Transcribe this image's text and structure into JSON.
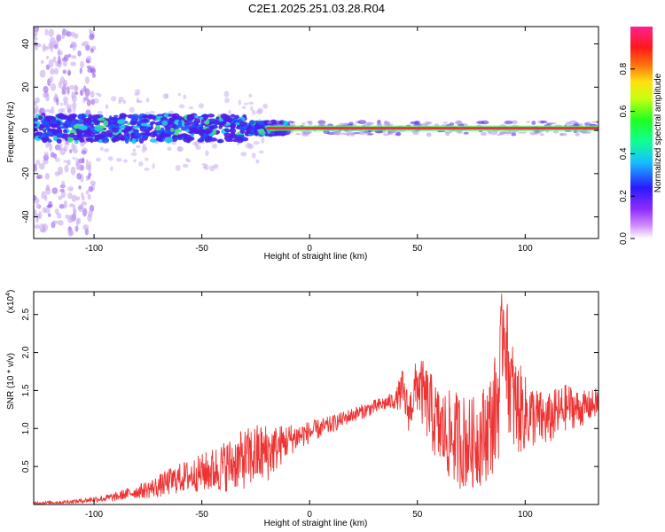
{
  "title": "C2E1.2025.251.03.28.R04",
  "colors": {
    "snr_line": "#ee3333",
    "axis": "#000000",
    "carrier": "#e8323c",
    "carrier_glow": "#40ff60",
    "noise_core": "#4a1ee8",
    "noise_halo": "#c8a8f0"
  },
  "chart_data": [
    {
      "type": "heatmap",
      "title": "C2E1.2025.251.03.28.R04",
      "xlabel": "Height of straight line (km)",
      "ylabel": "Frequency (Hz)",
      "xlim": [
        -128,
        134
      ],
      "ylim": [
        -50,
        48
      ],
      "xticks": [
        -100,
        -50,
        0,
        50,
        100
      ],
      "xtick_labels": [
        "-100",
        "-50",
        "0",
        "50",
        "100"
      ],
      "yticks": [
        -40,
        -20,
        0,
        20,
        40
      ],
      "ytick_labels": [
        "-40",
        "-20",
        "0",
        "20",
        "40"
      ],
      "grid": false,
      "colorbar": {
        "label": "Normalized spectral amplitude",
        "range": [
          0,
          1
        ],
        "ticks": [
          0.0,
          0.2,
          0.4,
          0.6,
          0.8
        ],
        "tick_labels": [
          "0.0",
          "0.2",
          "0.4",
          "0.6",
          "0.8"
        ],
        "colormap": "rainbow (white-violet-blue-cyan-green-yellow-red-magenta)"
      },
      "description_values": {
        "carrier_frequency_hz": 1,
        "broadband_region_km": [
          -128,
          -20
        ],
        "broadband_halfwidth_hz": 6,
        "scatter_region_km": [
          -128,
          -100
        ],
        "scatter_extent_hz": [
          -48,
          48
        ]
      }
    },
    {
      "type": "line",
      "xlabel": "Height of straight line (km)",
      "ylabel": "SNR (10 * v/v)",
      "scale_label": "(x10",
      "scale_exponent": "4",
      "scale_suffix": ")",
      "xlim": [
        -128,
        134
      ],
      "ylim": [
        0,
        2.8
      ],
      "xticks": [
        -100,
        -50,
        0,
        50,
        100
      ],
      "xtick_labels": [
        "-100",
        "-50",
        "0",
        "50",
        "100"
      ],
      "yticks": [
        0.5,
        1.0,
        1.5,
        2.0,
        2.5
      ],
      "ytick_labels": [
        "0.5",
        "1.0",
        "1.5",
        "2.0",
        "2.5"
      ],
      "grid": false,
      "series": [
        {
          "name": "SNR",
          "x": [
            -128,
            -115,
            -105,
            -100,
            -95,
            -90,
            -85,
            -80,
            -75,
            -70,
            -65,
            -60,
            -55,
            -50,
            -45,
            -40,
            -35,
            -30,
            -25,
            -20,
            -15,
            -10,
            -5,
            0,
            5,
            10,
            15,
            20,
            25,
            30,
            35,
            40,
            43,
            46,
            50,
            55,
            60,
            65,
            70,
            75,
            80,
            85,
            88,
            90,
            92,
            95,
            100,
            105,
            110,
            115,
            120,
            125,
            130,
            134
          ],
          "values": [
            0.02,
            0.03,
            0.05,
            0.07,
            0.08,
            0.1,
            0.14,
            0.17,
            0.2,
            0.24,
            0.3,
            0.35,
            0.38,
            0.42,
            0.45,
            0.5,
            0.55,
            0.6,
            0.65,
            0.68,
            0.75,
            0.85,
            0.9,
            0.95,
            1.0,
            1.05,
            1.12,
            1.18,
            1.23,
            1.28,
            1.33,
            1.38,
            1.5,
            1.2,
            1.6,
            1.3,
            1.0,
            0.9,
            0.85,
            0.8,
            0.9,
            1.1,
            1.5,
            2.5,
            1.8,
            1.3,
            1.2,
            1.15,
            1.1,
            1.2,
            1.3,
            1.25,
            1.3,
            1.35
          ],
          "spread": [
            0.02,
            0.02,
            0.03,
            0.04,
            0.05,
            0.06,
            0.07,
            0.09,
            0.12,
            0.15,
            0.18,
            0.2,
            0.22,
            0.25,
            0.3,
            0.34,
            0.36,
            0.4,
            0.42,
            0.4,
            0.3,
            0.22,
            0.18,
            0.15,
            0.13,
            0.12,
            0.1,
            0.1,
            0.1,
            0.1,
            0.1,
            0.12,
            0.3,
            0.25,
            0.4,
            0.5,
            0.55,
            0.6,
            0.65,
            0.6,
            0.65,
            0.7,
            0.9,
            0.6,
            0.8,
            0.7,
            0.5,
            0.4,
            0.35,
            0.35,
            0.3,
            0.25,
            0.2,
            0.2
          ]
        }
      ]
    }
  ]
}
